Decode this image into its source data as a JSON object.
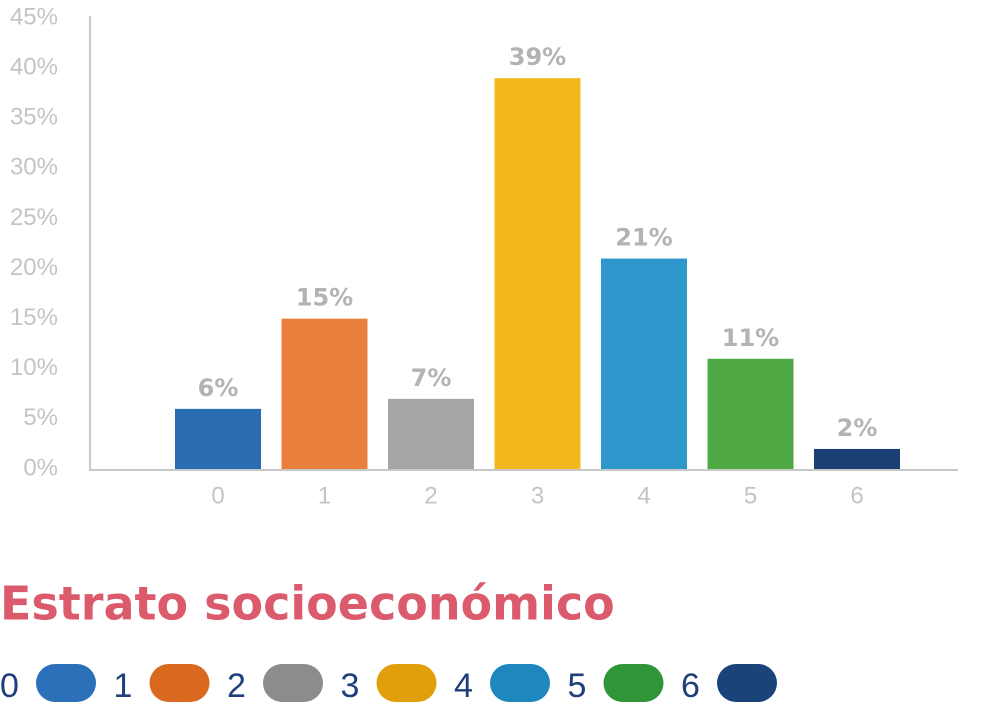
{
  "chart_data": {
    "type": "bar",
    "title": "Estrato socioeconómico",
    "categories": [
      "0",
      "1",
      "2",
      "3",
      "4",
      "5",
      "6"
    ],
    "values": [
      6,
      15,
      7,
      39,
      21,
      11,
      2
    ],
    "value_labels": [
      "6%",
      "15%",
      "7%",
      "39%",
      "21%",
      "11%",
      "2%"
    ],
    "colors": [
      "#2a6db3",
      "#e97f3b",
      "#a6a6a6",
      "#f4b81f",
      "#2e97cb",
      "#4ea944",
      "#1b3f73"
    ],
    "legend_colors": [
      "#2b70b9",
      "#d8691f",
      "#8c8c8c",
      "#e1a00b",
      "#1d87be",
      "#2f9538",
      "#1a4479"
    ],
    "ylim": [
      0,
      45
    ],
    "yticks": [
      {
        "value": 0,
        "label": "0%"
      },
      {
        "value": 5,
        "label": "5%"
      },
      {
        "value": 10,
        "label": "10%"
      },
      {
        "value": 15,
        "label": "15%"
      },
      {
        "value": 20,
        "label": "20%"
      },
      {
        "value": 25,
        "label": "25%"
      },
      {
        "value": 30,
        "label": "30%"
      },
      {
        "value": 35,
        "label": "35%"
      },
      {
        "value": 40,
        "label": "40%"
      },
      {
        "value": 45,
        "label": "45%"
      }
    ],
    "grid": false
  }
}
